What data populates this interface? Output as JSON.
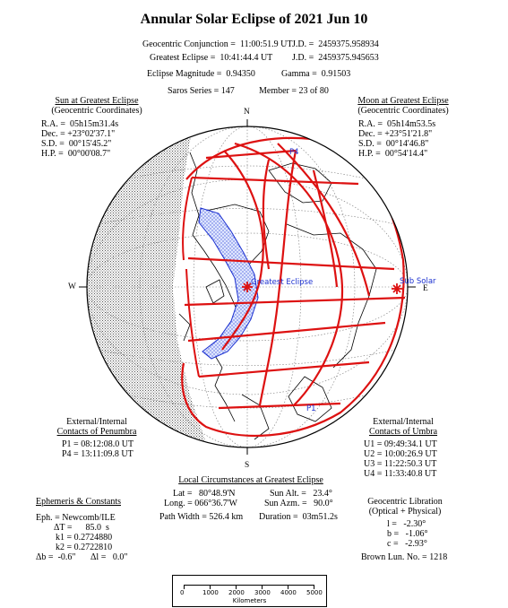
{
  "title": "Annular Solar Eclipse of 2021 Jun 10",
  "header": {
    "conjunction": "Geocentric Conjunction =  11:00:51.9 UT",
    "conjunction_jd": "J.D. =  2459375.958934",
    "greatest": "Greatest Eclipse =  10:41:44.4 UT",
    "greatest_jd": "J.D. =  2459375.945653",
    "magnitude": "Eclipse Magnitude =  0.94350",
    "gamma": "Gamma =  0.91503",
    "saros": "Saros Series = 147",
    "member": "Member = 23 of 80"
  },
  "sun": {
    "title": "Sun at Greatest Eclipse",
    "subtitle": "(Geocentric Coordinates)",
    "lines": [
      "R.A. =  05h15m31.4s",
      "Dec. = +23°02'37.1\"",
      "S.D. =  00°15'45.2\"",
      "H.P. =  00°00'08.7\""
    ]
  },
  "moon": {
    "title": "Moon at Greatest Eclipse",
    "subtitle": "(Geocentric Coordinates)",
    "lines": [
      "R.A. =  05h14m53.5s",
      "Dec. = +23°51'21.8\"",
      "S.D. =  00°14'46.8\"",
      "H.P. =  00°54'14.4\""
    ]
  },
  "map": {
    "north": "N",
    "south": "S",
    "west": "W",
    "east": "E",
    "greatest_label": "Greatest Eclipse",
    "subsolar_label": "Sub Solar",
    "p1": "P1",
    "p4": "P4"
  },
  "penumbra": {
    "title1": "External/Internal",
    "title2": "Contacts of Penumbra",
    "lines": [
      "P1 = 08:12:08.0 UT",
      "P4 = 13:11:09.8 UT"
    ]
  },
  "umbra": {
    "title1": "External/Internal",
    "title2": "Contacts of Umbra",
    "lines": [
      "U1 = 09:49:34.1 UT",
      "U2 = 10:00:26.9 UT",
      "U3 = 11:22:50.3 UT",
      "U4 = 11:33:40.8 UT"
    ]
  },
  "local": {
    "title": "Local Circumstances at Greatest Eclipse",
    "lat": "Lat =   80°48.9'N",
    "long": "Long. = 066°36.7'W",
    "sun_alt": "Sun Alt. =   23.4°",
    "sun_azm": "Sun Azm. =   90.0°",
    "path_width": "Path Width = 526.4 km",
    "duration": "Duration =  03m51.2s"
  },
  "ephemeris": {
    "title": "Ephemeris & Constants",
    "eph": "Eph. = Newcomb/ILE",
    "dt": "ΔT =      85.0  s",
    "k1": "k1 = 0.2724880",
    "k2": "k2 = 0.2722810",
    "db": "Δb =  -0.6\"",
    "dl": "Δl =   0.0\""
  },
  "libration": {
    "title1": "Geocentric Libration",
    "title2": "(Optical + Physical)",
    "l": "l =   -2.30°",
    "b": "b =   -1.06°",
    "c": "c =   -2.93°",
    "brown": "Brown Lun. No. = 1218"
  },
  "scale": {
    "ticks": [
      "0",
      "1000",
      "2000",
      "3000",
      "4000",
      "5000"
    ],
    "unit": "Kilometers"
  }
}
